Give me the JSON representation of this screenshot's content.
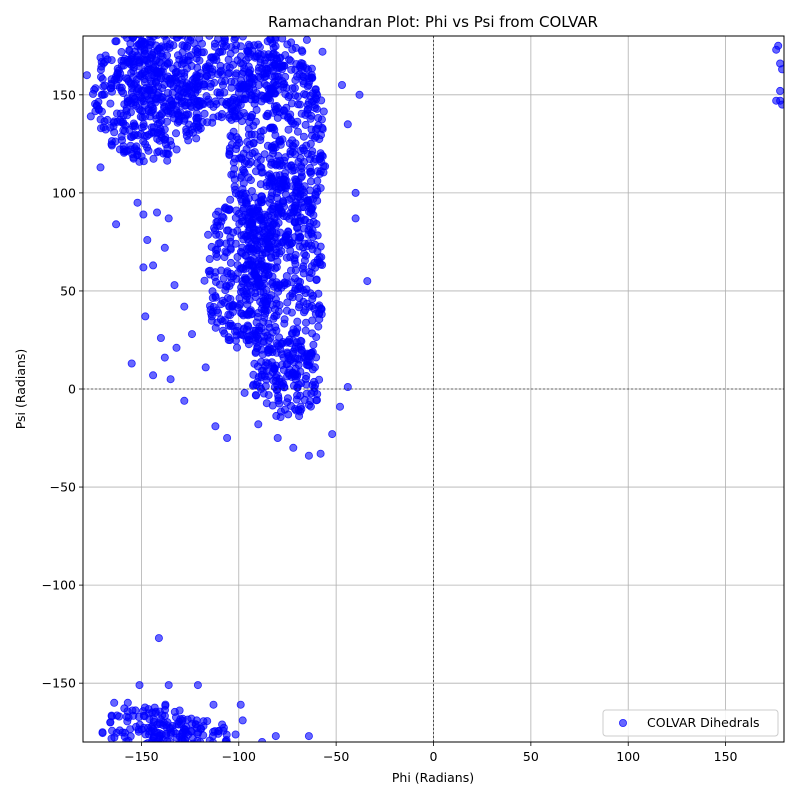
{
  "chart_data": {
    "type": "scatter",
    "title": "Ramachandran Plot: Phi vs Psi from COLVAR",
    "xlabel": "Phi (Radians)",
    "ylabel": "Psi (Radians)",
    "xlim": [
      -180,
      180
    ],
    "ylim": [
      -180,
      180
    ],
    "xticks": [
      -150,
      -100,
      -50,
      0,
      50,
      100,
      150
    ],
    "yticks": [
      -150,
      -100,
      -50,
      0,
      50,
      100,
      150
    ],
    "xtick_labels": [
      "−150",
      "−100",
      "−50",
      "0",
      "50",
      "100",
      "150"
    ],
    "ytick_labels": [
      "−150",
      "−100",
      "−50",
      "0",
      "50",
      "100",
      "150"
    ],
    "grid": true,
    "zero_lines": true,
    "legend_position": "lower-right",
    "series": [
      {
        "name": "COLVAR Dihedrals",
        "color": "#0000ff",
        "marker": "circle",
        "regions": [
          {
            "shape": "ellipse",
            "cx": -145,
            "cy": 150,
            "rx": 30,
            "ry": 35
          },
          {
            "shape": "ellipse",
            "cx": -120,
            "cy": 160,
            "rx": 45,
            "ry": 25
          },
          {
            "shape": "ellipse",
            "cx": -80,
            "cy": 125,
            "rx": 25,
            "ry": 55
          },
          {
            "shape": "ellipse",
            "cx": -78,
            "cy": 55,
            "rx": 22,
            "ry": 55
          },
          {
            "shape": "ellipse",
            "cx": -75,
            "cy": 5,
            "rx": 18,
            "ry": 20
          },
          {
            "shape": "ellipse",
            "cx": -100,
            "cy": 60,
            "rx": 18,
            "ry": 40
          },
          {
            "shape": "ellipse",
            "cx": -145,
            "cy": -175,
            "rx": 25,
            "ry": 15
          },
          {
            "shape": "ellipse",
            "cx": -125,
            "cy": -178,
            "rx": 25,
            "ry": 10
          }
        ],
        "scatter_points": [
          [
            -155,
            13
          ],
          [
            -148,
            37
          ],
          [
            -140,
            26
          ],
          [
            -135,
            5
          ],
          [
            -128,
            -6
          ],
          [
            -112,
            -19
          ],
          [
            -106,
            -25
          ],
          [
            -97,
            -2
          ],
          [
            -90,
            -18
          ],
          [
            -80,
            -25
          ],
          [
            -72,
            -30
          ],
          [
            -64,
            -34
          ],
          [
            -58,
            -33
          ],
          [
            -52,
            -23
          ],
          [
            -48,
            -9
          ],
          [
            -44,
            1
          ],
          [
            -34,
            55
          ],
          [
            -40,
            87
          ],
          [
            -40,
            100
          ],
          [
            -38,
            150
          ],
          [
            -44,
            135
          ],
          [
            -47,
            155
          ],
          [
            -57,
            172
          ],
          [
            -65,
            178
          ],
          [
            -142,
            90
          ],
          [
            -147,
            76
          ],
          [
            -149,
            62
          ],
          [
            -144,
            63
          ],
          [
            -138,
            72
          ],
          [
            -133,
            53
          ],
          [
            -128,
            42
          ],
          [
            -138,
            16
          ],
          [
            -144,
            7
          ],
          [
            -132,
            21
          ],
          [
            -124,
            28
          ],
          [
            -117,
            11
          ],
          [
            -141,
            -127
          ],
          [
            -151,
            -151
          ],
          [
            -136,
            -151
          ],
          [
            -121,
            -151
          ],
          [
            -113,
            -161
          ],
          [
            -99,
            -161
          ],
          [
            -98,
            -169
          ],
          [
            -81,
            -177
          ],
          [
            -64,
            -177
          ],
          [
            -88,
            -180
          ],
          [
            -163,
            84
          ],
          [
            -171,
            113
          ],
          [
            -176,
            139
          ],
          [
            -178,
            160
          ],
          [
            -171,
            169
          ],
          [
            -152,
            95
          ],
          [
            -149,
            89
          ],
          [
            -136,
            87
          ],
          [
            -157,
            -160
          ],
          [
            -164,
            -160
          ],
          [
            -166,
            -170
          ],
          [
            -170,
            -175
          ]
        ],
        "wrap_points": [
          [
            177,
            175
          ],
          [
            178,
            166
          ],
          [
            179,
            163
          ],
          [
            178,
            152
          ],
          [
            178,
            147
          ],
          [
            179,
            145
          ],
          [
            176,
            147
          ],
          [
            176,
            173
          ]
        ]
      }
    ]
  }
}
